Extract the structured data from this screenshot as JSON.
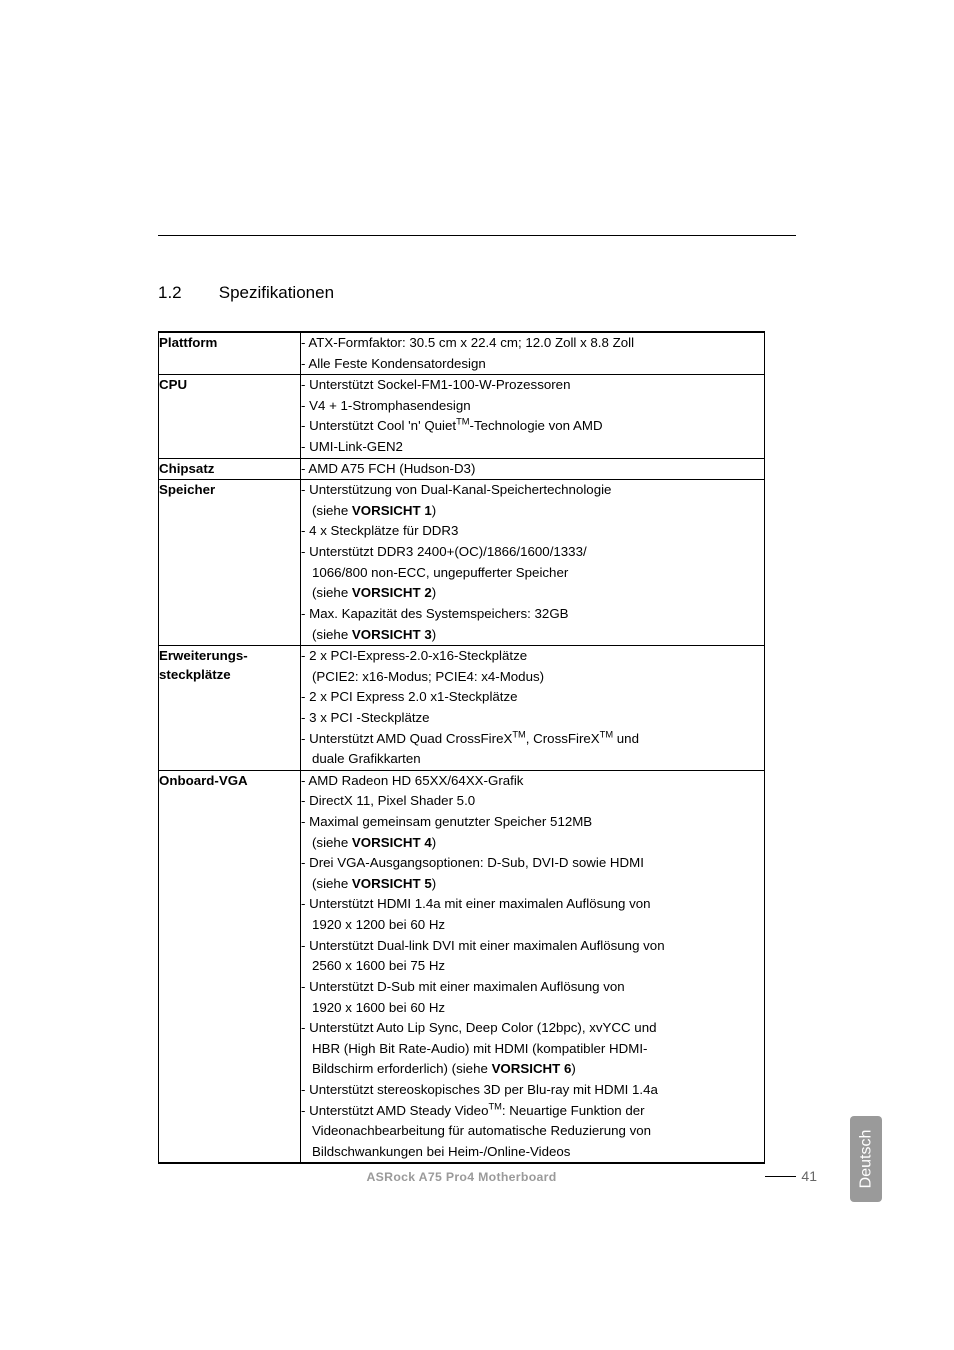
{
  "heading": {
    "number": "1.2",
    "title": "Spezifikationen"
  },
  "sideTab": "Deutsch",
  "pageNumber": "41",
  "footerText": "ASRock  A75 Pro4  Motherboard",
  "sections": [
    {
      "label": [
        "Plattform"
      ],
      "lines": [
        {
          "t": "- ATX-Formfaktor: 30.5 cm x 22.4 cm; 12.0 Zoll x 8.8 Zoll"
        },
        {
          "t": "- Alle Feste Kondensatordesign"
        }
      ]
    },
    {
      "label": [
        "CPU"
      ],
      "lines": [
        {
          "t": "- Unterstützt Sockel-FM1-100-W-Prozessoren"
        },
        {
          "t": "- V4 + 1-Stromphasendesign"
        },
        {
          "html": "- Unterstützt Cool 'n' Quiet<sup>TM</sup>-Technologie von AMD"
        },
        {
          "t": "- UMI-Link-GEN2"
        }
      ]
    },
    {
      "label": [
        "Chipsatz"
      ],
      "lines": [
        {
          "t": "- AMD A75 FCH (Hudson-D3)"
        }
      ]
    },
    {
      "label": [
        "Speicher"
      ],
      "lines": [
        {
          "t": "- Unterstützung von Dual-Kanal-Speichertechnologie"
        },
        {
          "html": "(siehe <span class=\"bold\">VORSICHT 1</span>)",
          "indent": true
        },
        {
          "t": "- 4 x Steckplätze für DDR3"
        },
        {
          "t": "- Unterstützt DDR3 2400+(OC)/1866/1600/1333/"
        },
        {
          "t": "1066/800 non-ECC, ungepufferter Speicher",
          "indent": true
        },
        {
          "html": "(siehe <span class=\"bold\">VORSICHT 2</span>)",
          "indent": true
        },
        {
          "t": "- Max. Kapazität des Systemspeichers: 32GB"
        },
        {
          "html": "(siehe <span class=\"bold\">VORSICHT 3</span>)",
          "indent": true
        }
      ]
    },
    {
      "label": [
        "Erweiterungs-",
        "steckplätze"
      ],
      "lines": [
        {
          "t": "- 2 x PCI-Express-2.0-x16-Steckplätze"
        },
        {
          "t": "(PCIE2: x16-Modus; PCIE4: x4-Modus)",
          "indent": true
        },
        {
          "t": "- 2 x PCI Express 2.0 x1-Steckplätze"
        },
        {
          "t": "- 3 x PCI -Steckplätze"
        },
        {
          "html": "- Unterstützt AMD Quad CrossFireX<sup>TM</sup>, CrossFireX<sup>TM</sup> und"
        },
        {
          "t": "duale Grafikkarten",
          "indent": true
        }
      ]
    },
    {
      "label": [
        "Onboard-VGA"
      ],
      "lines": [
        {
          "t": "- AMD Radeon HD 65XX/64XX-Grafik"
        },
        {
          "t": "- DirectX 11, Pixel Shader 5.0"
        },
        {
          "t": "- Maximal gemeinsam genutzter Speicher 512MB"
        },
        {
          "html": "(siehe <span class=\"bold\">VORSICHT 4</span>)",
          "indent": true
        },
        {
          "t": "- Drei VGA-Ausgangsoptionen: D-Sub, DVI-D sowie HDMI"
        },
        {
          "html": "(siehe <span class=\"bold\">VORSICHT 5</span>)",
          "indent": true
        },
        {
          "t": "- Unterstützt HDMI 1.4a mit einer maximalen Auflösung von"
        },
        {
          "t": "1920 x 1200 bei 60 Hz",
          "indent": true
        },
        {
          "t": "- Unterstützt Dual-link DVI mit einer maximalen Auflösung von"
        },
        {
          "t": "2560 x 1600 bei 75 Hz",
          "indent": true
        },
        {
          "t": "- Unterstützt D-Sub mit einer maximalen Auflösung von"
        },
        {
          "t": "1920 x 1600 bei 60 Hz",
          "indent": true
        },
        {
          "t": "- Unterstützt Auto Lip Sync, Deep Color (12bpc), xvYCC und"
        },
        {
          "t": "HBR (High Bit Rate-Audio) mit HDMI (kompatibler HDMI-",
          "indent": true
        },
        {
          "html": "Bildschirm erforderlich) (siehe <span class=\"bold\">VORSICHT 6</span>)",
          "indent": true
        },
        {
          "t": "- Unterstützt stereoskopisches 3D per Blu-ray mit HDMI 1.4a"
        },
        {
          "html": "- Unterstützt AMD Steady Video<sup>TM</sup>: Neuartige Funktion der"
        },
        {
          "t": "Videonachbearbeitung für automatische Reduzierung von",
          "indent": true
        },
        {
          "t": "Bildschwankungen bei Heim-/Online-Videos",
          "indent": true
        }
      ]
    }
  ]
}
